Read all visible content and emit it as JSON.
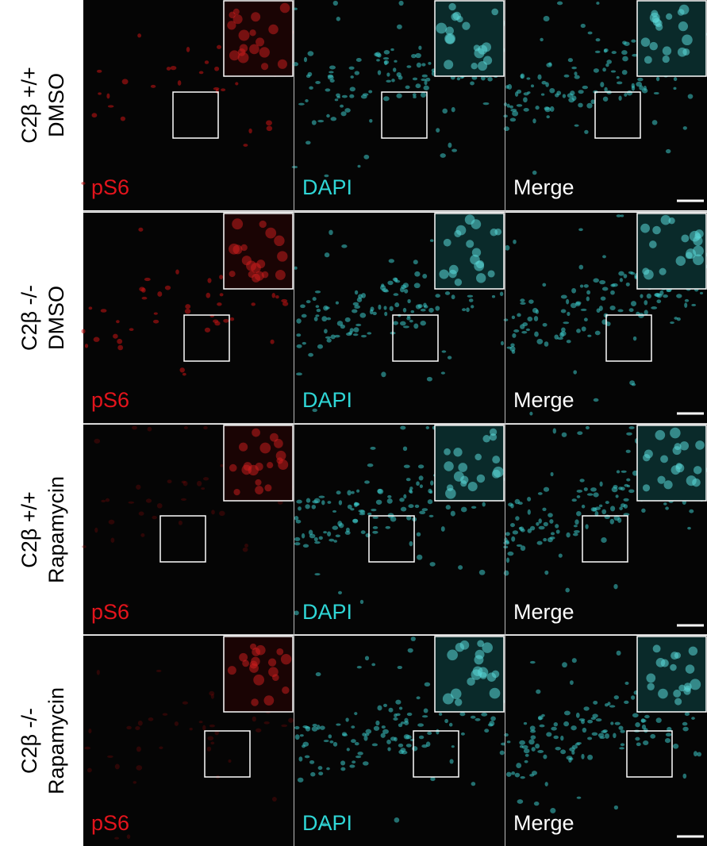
{
  "rows": [
    {
      "label": [
        "C2β +/+",
        "DMSO"
      ],
      "panels": [
        "pS6",
        "DAPI",
        "Merge"
      ]
    },
    {
      "label": [
        "C2β -/-",
        "DMSO"
      ],
      "panels": [
        "pS6",
        "DAPI",
        "Merge"
      ]
    },
    {
      "label": [
        "C2β +/+",
        "Rapamycin"
      ],
      "panels": [
        "pS6",
        "DAPI",
        "Merge"
      ]
    },
    {
      "label": [
        "C2β -/-",
        "Rapamycin"
      ],
      "panels": [
        "pS6",
        "DAPI",
        "Merge"
      ]
    }
  ]
}
